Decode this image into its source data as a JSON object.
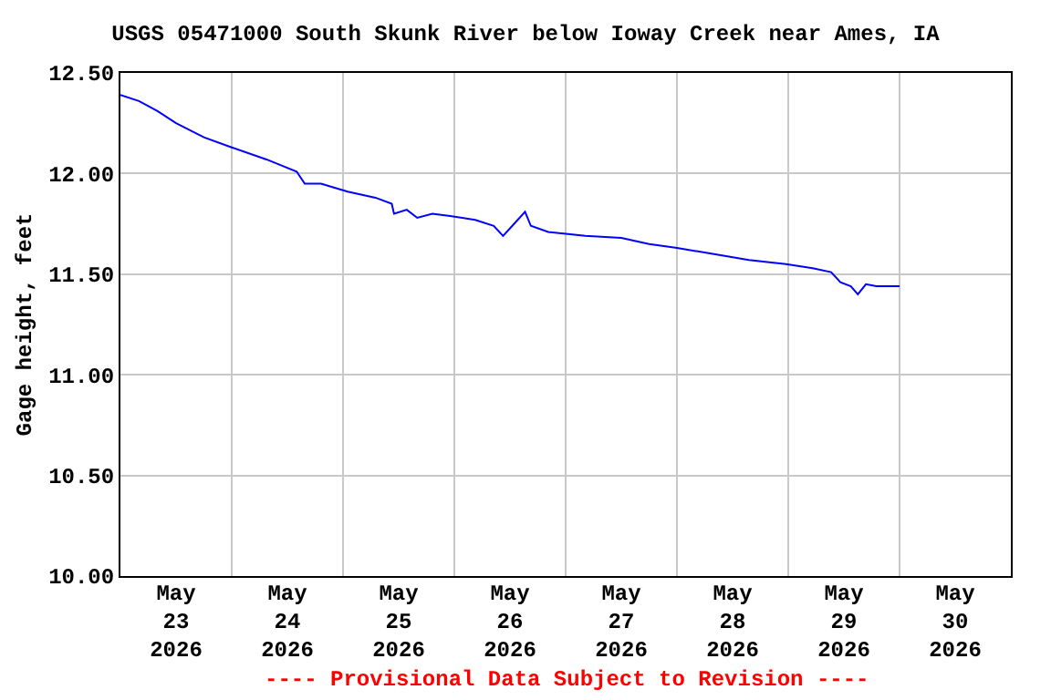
{
  "chart_data": {
    "type": "line",
    "title": "USGS 05471000 South Skunk River below Ioway Creek near Ames, IA",
    "ylabel": "Gage height, feet",
    "annotations": [
      "---- Provisional Data Subject to Revision ----"
    ],
    "x": [
      "2026-05-23T00:00",
      "2026-05-23T04:00",
      "2026-05-23T08:00",
      "2026-05-23T12:00",
      "2026-05-23T18:00",
      "2026-05-24T00:00",
      "2026-05-24T07:30",
      "2026-05-24T14:00",
      "2026-05-24T15:45",
      "2026-05-24T19:15",
      "2026-05-25T01:00",
      "2026-05-25T07:00",
      "2026-05-25T10:30",
      "2026-05-25T11:00",
      "2026-05-25T13:45",
      "2026-05-25T16:00",
      "2026-05-25T19:15",
      "2026-05-25T22:45",
      "2026-05-26T04:30",
      "2026-05-26T08:30",
      "2026-05-26T10:30",
      "2026-05-26T12:30",
      "2026-05-26T15:15",
      "2026-05-26T16:30",
      "2026-05-26T20:15",
      "2026-05-27T04:15",
      "2026-05-27T12:00",
      "2026-05-27T18:00",
      "2026-05-28T00:00",
      "2026-05-28T08:00",
      "2026-05-28T15:30",
      "2026-05-28T23:30",
      "2026-05-29T05:15",
      "2026-05-29T09:15",
      "2026-05-29T11:15",
      "2026-05-29T13:30",
      "2026-05-29T15:00",
      "2026-05-29T16:45",
      "2026-05-29T19:00",
      "2026-05-30T00:00"
    ],
    "series": [
      {
        "color": "#0000ff",
        "values": [
          12.39,
          12.36,
          12.31,
          12.25,
          12.18,
          12.13,
          12.07,
          12.01,
          11.95,
          11.95,
          11.91,
          11.88,
          11.85,
          11.8,
          11.82,
          11.78,
          11.8,
          11.79,
          11.77,
          11.74,
          11.69,
          11.74,
          11.81,
          11.74,
          11.71,
          11.69,
          11.68,
          11.65,
          11.63,
          11.6,
          11.57,
          11.55,
          11.53,
          11.51,
          11.46,
          11.44,
          11.4,
          11.45,
          11.44,
          11.44
        ]
      }
    ],
    "xlim": [
      "2026-05-23",
      "2026-05-31"
    ],
    "xticks": [
      {
        "value": "2026-05-23T12:00",
        "label": "May\n23\n2026"
      },
      {
        "value": "2026-05-24T12:00",
        "label": "May\n24\n2026"
      },
      {
        "value": "2026-05-25T12:00",
        "label": "May\n25\n2026"
      },
      {
        "value": "2026-05-26T12:00",
        "label": "May\n26\n2026"
      },
      {
        "value": "2026-05-27T12:00",
        "label": "May\n27\n2026"
      },
      {
        "value": "2026-05-28T12:00",
        "label": "May\n28\n2026"
      },
      {
        "value": "2026-05-29T12:00",
        "label": "May\n29\n2026"
      },
      {
        "value": "2026-05-30T12:00",
        "label": "May\n30\n2026"
      },
      {
        "value": "2026-05-24",
        "label": null
      },
      {
        "value": "2026-05-25",
        "label": null
      },
      {
        "value": "2026-05-26",
        "label": null
      },
      {
        "value": "2026-05-27",
        "label": null
      },
      {
        "value": "2026-05-28",
        "label": null
      },
      {
        "value": "2026-05-29",
        "label": null
      },
      {
        "value": "2026-05-30",
        "label": null
      }
    ],
    "ylim": [
      10,
      12.5
    ],
    "yticks": [
      {
        "value": 10,
        "label": "10.00"
      },
      {
        "value": 10.5,
        "label": "10.50"
      },
      {
        "value": 11,
        "label": "11.00"
      },
      {
        "value": 11.5,
        "label": "11.50"
      },
      {
        "value": 12,
        "label": "12.00"
      },
      {
        "value": 12.5,
        "label": "12.50"
      }
    ],
    "grid": true,
    "legend": false,
    "marker": "none",
    "line_style": "solid"
  }
}
